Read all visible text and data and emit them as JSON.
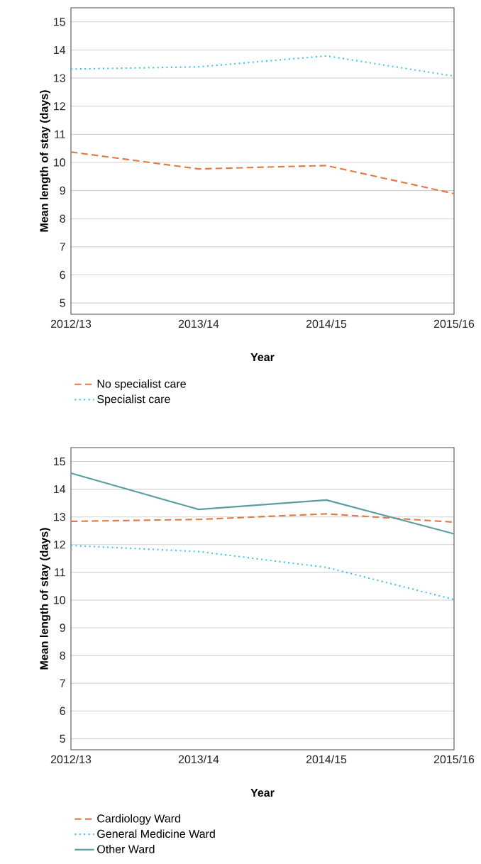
{
  "chart_data": [
    {
      "type": "line",
      "xlabel": "Year",
      "ylabel": "Mean length of stay (days)",
      "categories": [
        "2012/13",
        "2013/14",
        "2014/15",
        "2015/16"
      ],
      "series": [
        {
          "name": "No specialist care",
          "color": "#e07b45",
          "line_style": "dashed",
          "values": [
            10.37,
            9.77,
            9.89,
            8.89
          ]
        },
        {
          "name": "Specialist care",
          "color": "#45c8e6",
          "line_style": "dotted",
          "values": [
            13.32,
            13.4,
            13.79,
            13.07
          ]
        }
      ],
      "ylim": [
        4.6,
        15.5
      ],
      "yticks": [
        5,
        6,
        7,
        8,
        9,
        10,
        11,
        12,
        13,
        14,
        15
      ],
      "grid": "y",
      "legend": "bottom"
    },
    {
      "type": "line",
      "xlabel": "Year",
      "ylabel": "Mean length of stay (days)",
      "categories": [
        "2012/13",
        "2013/14",
        "2014/15",
        "2015/16"
      ],
      "series": [
        {
          "name": "Cardiology Ward",
          "color": "#e07b45",
          "line_style": "dashed",
          "values": [
            12.84,
            12.91,
            13.11,
            12.81
          ]
        },
        {
          "name": "General Medicine Ward",
          "color": "#45c8e6",
          "line_style": "dotted",
          "values": [
            11.97,
            11.75,
            11.18,
            10.02
          ]
        },
        {
          "name": "Other Ward",
          "color": "#5a9e9e",
          "line_style": "solid",
          "values": [
            14.58,
            13.27,
            13.61,
            12.39
          ]
        }
      ],
      "ylim": [
        4.6,
        15.5
      ],
      "yticks": [
        5,
        6,
        7,
        8,
        9,
        10,
        11,
        12,
        13,
        14,
        15
      ],
      "grid": "y",
      "legend": "bottom"
    }
  ]
}
